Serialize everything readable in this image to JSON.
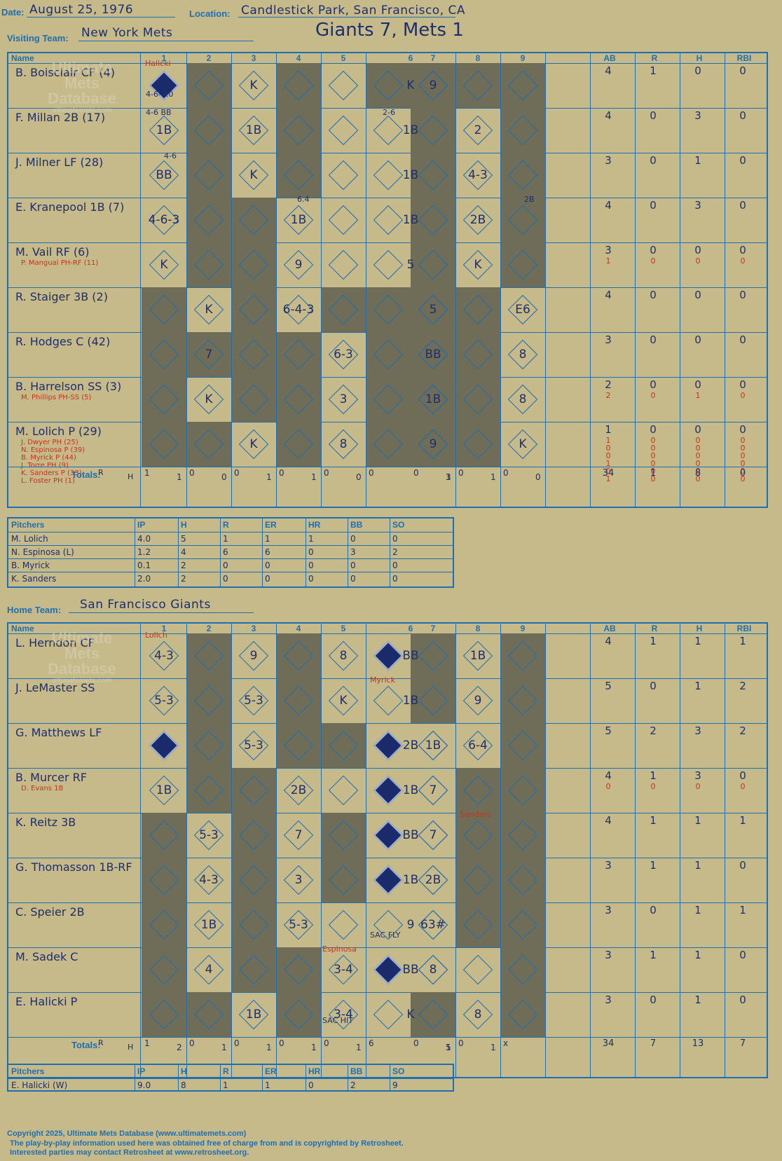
{
  "header": {
    "date_label": "Date:",
    "date": "August 25, 1976",
    "location_label": "Location:",
    "location": "Candlestick Park, San Francisco, CA",
    "visiting_label": "Visiting Team:",
    "visiting_team": "New York Mets",
    "result": "Giants 7, Mets 1",
    "home_label": "Home Team:",
    "home_team": "San Francisco Giants"
  },
  "columns": {
    "name": "Name",
    "innings": [
      "1",
      "2",
      "3",
      "4",
      "5",
      "6",
      "7",
      "8",
      "9"
    ],
    "stats": [
      "AB",
      "R",
      "H",
      "RBI"
    ]
  },
  "watermark": {
    "line1": "Ultimate",
    "line2": "Mets",
    "line3": "Database",
    "url": "ultimatemets.com"
  },
  "visitors": [
    {
      "name": "B. Boisclair  CF (4)",
      "subs": [],
      "ab": [
        "4"
      ],
      "r": [
        "1"
      ],
      "h": [
        "0"
      ],
      "rbi": [
        "0"
      ]
    },
    {
      "name": "F. Millan  2B (17)",
      "subs": [],
      "ab": [
        "4"
      ],
      "r": [
        "0"
      ],
      "h": [
        "3"
      ],
      "rbi": [
        "0"
      ]
    },
    {
      "name": "J. Milner  LF (28)",
      "subs": [],
      "ab": [
        "3"
      ],
      "r": [
        "0"
      ],
      "h": [
        "1"
      ],
      "rbi": [
        "0"
      ]
    },
    {
      "name": "E. Kranepool  1B (7)",
      "subs": [],
      "ab": [
        "4"
      ],
      "r": [
        "0"
      ],
      "h": [
        "3"
      ],
      "rbi": [
        "0"
      ]
    },
    {
      "name": "M. Vail  RF (6)",
      "subs": [
        "P. Mangual  PH-RF (11)"
      ],
      "ab": [
        "3",
        "1"
      ],
      "r": [
        "0",
        "0"
      ],
      "h": [
        "0",
        "0"
      ],
      "rbi": [
        "0",
        "0"
      ]
    },
    {
      "name": "R. Staiger  3B (2)",
      "subs": [],
      "ab": [
        "4"
      ],
      "r": [
        "0"
      ],
      "h": [
        "0"
      ],
      "rbi": [
        "0"
      ]
    },
    {
      "name": "R. Hodges  C (42)",
      "subs": [],
      "ab": [
        "3"
      ],
      "r": [
        "0"
      ],
      "h": [
        "0"
      ],
      "rbi": [
        "0"
      ]
    },
    {
      "name": "B. Harrelson  SS (3)",
      "subs": [
        "M. Phillips  PH-SS (5)"
      ],
      "ab": [
        "2",
        "2"
      ],
      "r": [
        "0",
        "0"
      ],
      "h": [
        "0",
        "1"
      ],
      "rbi": [
        "0",
        "0"
      ]
    },
    {
      "name": "M. Lolich  P (29)",
      "subs": [
        "J. Dwyer  PH (25)",
        "N. Espinosa  P (39)",
        "B. Myrick  P (44)",
        "J. Torre  PH (9)",
        "K. Sanders  P (33)",
        "L. Foster  PH (1)"
      ],
      "ab": [
        "1",
        "1",
        "0",
        "0",
        "1",
        "0",
        "1"
      ],
      "r": [
        "0",
        "0",
        "0",
        "0",
        "0",
        "0",
        "0"
      ],
      "h": [
        "0",
        "0",
        "0",
        "0",
        "0",
        "0",
        "0"
      ],
      "rbi": [
        "0",
        "0",
        "0",
        "0",
        "0",
        "0",
        "0"
      ]
    }
  ],
  "visitor_plays": [
    [
      [
        "1",
        "B"
      ],
      [
        "3",
        "K"
      ],
      [
        "6",
        "K"
      ],
      [
        "7",
        "9"
      ]
    ],
    [
      [
        "1",
        "1B"
      ],
      [
        "3",
        "1B"
      ],
      [
        "6",
        "1B"
      ],
      [
        "8",
        "2"
      ]
    ],
    [
      [
        "1",
        "BB"
      ],
      [
        "3",
        "K"
      ],
      [
        "6",
        "1B"
      ],
      [
        "8",
        "4-3"
      ]
    ],
    [
      [
        "1",
        "4-6-3"
      ],
      [
        "4",
        "1B"
      ],
      [
        "6",
        "1B"
      ],
      [
        "8",
        "2B"
      ]
    ],
    [
      [
        "1",
        "K"
      ],
      [
        "4",
        "9"
      ],
      [
        "6",
        "5"
      ],
      [
        "8",
        "K"
      ]
    ],
    [
      [
        "2",
        "K"
      ],
      [
        "4",
        "6-4-3"
      ],
      [
        "7",
        "5"
      ],
      [
        "9",
        "E6"
      ]
    ],
    [
      [
        "2",
        "7"
      ],
      [
        "5",
        "6-3"
      ],
      [
        "7",
        "BB"
      ],
      [
        "9",
        "8"
      ]
    ],
    [
      [
        "2",
        "K"
      ],
      [
        "5",
        "3"
      ],
      [
        "7",
        "1B"
      ],
      [
        "9",
        "8"
      ]
    ],
    [
      [
        "3",
        "K"
      ],
      [
        "5",
        "8"
      ],
      [
        "7",
        "9"
      ],
      [
        "9",
        "K"
      ]
    ]
  ],
  "visitor_notes": {
    "pitcher1": "Halicki",
    "r1": "4-6-3.0",
    "r2a": "4-6 BB",
    "r2b": "2-6",
    "r3a": "4-6",
    "r4a": "6.4",
    "r4b": "2B"
  },
  "visitor_totals": {
    "label": "Totals:",
    "rh": [
      "R",
      "H"
    ],
    "innings": [
      [
        "1",
        "1"
      ],
      [
        "0",
        "0"
      ],
      [
        "0",
        "1"
      ],
      [
        "0",
        "1"
      ],
      [
        "0",
        "0"
      ],
      [
        "0",
        "3"
      ],
      [
        "0",
        "1"
      ],
      [
        "0",
        "1"
      ],
      [
        "0",
        "0"
      ]
    ],
    "ab": "34",
    "r": "1",
    "h": "8",
    "rbi": "0"
  },
  "visitor_pitching": {
    "headers": [
      "Pitchers",
      "IP",
      "H",
      "R",
      "ER",
      "HR",
      "BB",
      "SO"
    ],
    "rows": [
      [
        "M. Lolich",
        "4.0",
        "5",
        "1",
        "1",
        "1",
        "0",
        "0"
      ],
      [
        "N. Espinosa (L)",
        "1.2",
        "4",
        "6",
        "6",
        "0",
        "3",
        "2"
      ],
      [
        "B. Myrick",
        "0.1",
        "2",
        "0",
        "0",
        "0",
        "0",
        "0"
      ],
      [
        "K. Sanders",
        "2.0",
        "2",
        "0",
        "0",
        "0",
        "0",
        "0"
      ]
    ]
  },
  "home": [
    {
      "name": "L. Herndon  CF",
      "subs": [],
      "ab": [
        "4"
      ],
      "r": [
        "1"
      ],
      "h": [
        "1"
      ],
      "rbi": [
        "1"
      ]
    },
    {
      "name": "J. LeMaster  SS",
      "subs": [],
      "ab": [
        "5"
      ],
      "r": [
        "0"
      ],
      "h": [
        "1"
      ],
      "rbi": [
        "2"
      ]
    },
    {
      "name": "G. Matthews  LF",
      "subs": [],
      "ab": [
        "5"
      ],
      "r": [
        "2"
      ],
      "h": [
        "3"
      ],
      "rbi": [
        "2"
      ]
    },
    {
      "name": "B. Murcer  RF",
      "subs": [
        "D. Evans  1B"
      ],
      "ab": [
        "4",
        "0"
      ],
      "r": [
        "1",
        "0"
      ],
      "h": [
        "3",
        "0"
      ],
      "rbi": [
        "0",
        "0"
      ]
    },
    {
      "name": "K. Reitz  3B",
      "subs": [],
      "ab": [
        "4"
      ],
      "r": [
        "1"
      ],
      "h": [
        "1"
      ],
      "rbi": [
        "1"
      ]
    },
    {
      "name": "G. Thomasson  1B-RF",
      "subs": [],
      "ab": [
        "3"
      ],
      "r": [
        "1"
      ],
      "h": [
        "1"
      ],
      "rbi": [
        "0"
      ]
    },
    {
      "name": "C. Speier  2B",
      "subs": [],
      "ab": [
        "3"
      ],
      "r": [
        "0"
      ],
      "h": [
        "1"
      ],
      "rbi": [
        "1"
      ]
    },
    {
      "name": "M. Sadek  C",
      "subs": [],
      "ab": [
        "3"
      ],
      "r": [
        "1"
      ],
      "h": [
        "1"
      ],
      "rbi": [
        "0"
      ]
    },
    {
      "name": "E. Halicki  P",
      "subs": [],
      "ab": [
        "3"
      ],
      "r": [
        "0"
      ],
      "h": [
        "1"
      ],
      "rbi": [
        "0"
      ]
    }
  ],
  "home_plays": [
    [
      [
        "1",
        "4-3"
      ],
      [
        "3",
        "9"
      ],
      [
        "5",
        "8"
      ],
      [
        "6",
        "BB"
      ],
      [
        "8",
        "1B"
      ]
    ],
    [
      [
        "1",
        "5-3"
      ],
      [
        "3",
        "5-3"
      ],
      [
        "5",
        "K"
      ],
      [
        "6",
        "1B"
      ],
      [
        "8",
        "9"
      ]
    ],
    [
      [
        "1",
        "HR"
      ],
      [
        "3",
        "5-3"
      ],
      [
        "6",
        "2B"
      ],
      [
        "7",
        "1B"
      ],
      [
        "8",
        "6-4"
      ]
    ],
    [
      [
        "1",
        "1B"
      ],
      [
        "4",
        "2B"
      ],
      [
        "6",
        "1B"
      ],
      [
        "7",
        "7"
      ]
    ],
    [
      [
        "2",
        "5-3"
      ],
      [
        "4",
        "7"
      ],
      [
        "6",
        "BB"
      ],
      [
        "7",
        "7"
      ]
    ],
    [
      [
        "2",
        "4-3"
      ],
      [
        "4",
        "3"
      ],
      [
        "6",
        "1B"
      ],
      [
        "7",
        "2B"
      ]
    ],
    [
      [
        "2",
        "1B"
      ],
      [
        "4",
        "5-3"
      ],
      [
        "6",
        "9"
      ],
      [
        "7",
        "63#"
      ]
    ],
    [
      [
        "2",
        "4"
      ],
      [
        "5",
        "3-4"
      ],
      [
        "6",
        "BB"
      ],
      [
        "7",
        "8"
      ]
    ],
    [
      [
        "3",
        "1B"
      ],
      [
        "5",
        "3-4"
      ],
      [
        "6",
        "K"
      ],
      [
        "8",
        "8"
      ]
    ]
  ],
  "home_notes": {
    "pitcher1": "Lolich",
    "myrick": "Myrick",
    "sanders": "Sanders",
    "espinosa": "Espinosa",
    "sacfly": "SAC FLY",
    "sachit": "SAC HIT"
  },
  "home_totals": {
    "label": "Totals:",
    "rh": [
      "R",
      "H"
    ],
    "innings": [
      [
        "1",
        "2"
      ],
      [
        "0",
        "1"
      ],
      [
        "0",
        "1"
      ],
      [
        "0",
        "1"
      ],
      [
        "0",
        "1"
      ],
      [
        "6",
        "5"
      ],
      [
        "0",
        "1"
      ],
      [
        "0",
        "1"
      ],
      [
        "x",
        ""
      ]
    ],
    "ab": "34",
    "r": "7",
    "h": "13",
    "rbi": "7"
  },
  "home_pitching": {
    "headers": [
      "Pitchers",
      "IP",
      "H",
      "R",
      "ER",
      "HR",
      "BB",
      "SO"
    ],
    "rows": [
      [
        "E. Halicki (W)",
        "9.0",
        "8",
        "1",
        "1",
        "0",
        "2",
        "9"
      ]
    ]
  },
  "footer": {
    "line1": "Copyright 2025, Ultimate Mets Database (www.ultimatemets.com)",
    "line2": "The play-by-play information used here was obtained free of charge from and is copyrighted by Retrosheet.",
    "line3": "Interested parties may contact Retrosheet at www.retrosheet.org."
  }
}
